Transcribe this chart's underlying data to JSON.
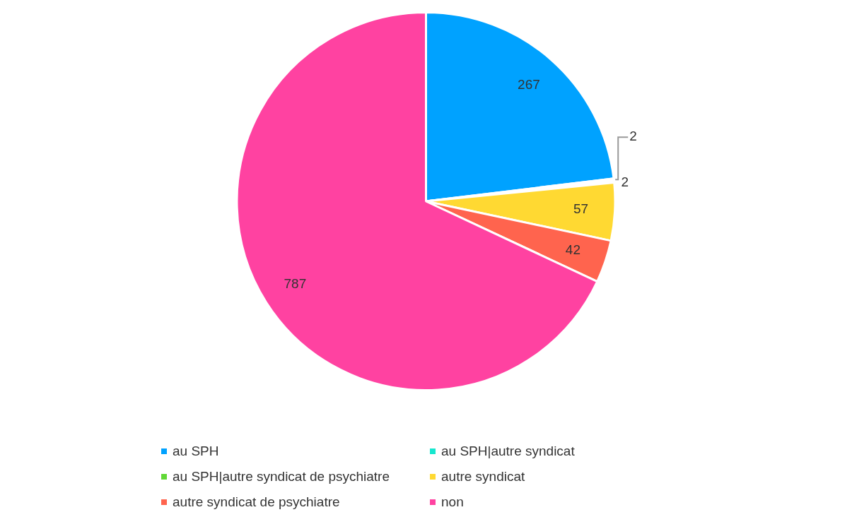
{
  "chart_data": {
    "type": "pie",
    "categories": [
      "au SPH",
      "au SPH|autre syndicat",
      "au SPH|autre syndicat de psychiatre",
      "autre syndicat",
      "autre syndicat de psychiatre",
      "non"
    ],
    "values": [
      267,
      2,
      2,
      57,
      42,
      787
    ],
    "colors": [
      "#00a2ff",
      "#16e7cf",
      "#61d836",
      "#ffd932",
      "#ff644e",
      "#ff42a1"
    ],
    "data_labels": true,
    "legend": "bottom"
  }
}
